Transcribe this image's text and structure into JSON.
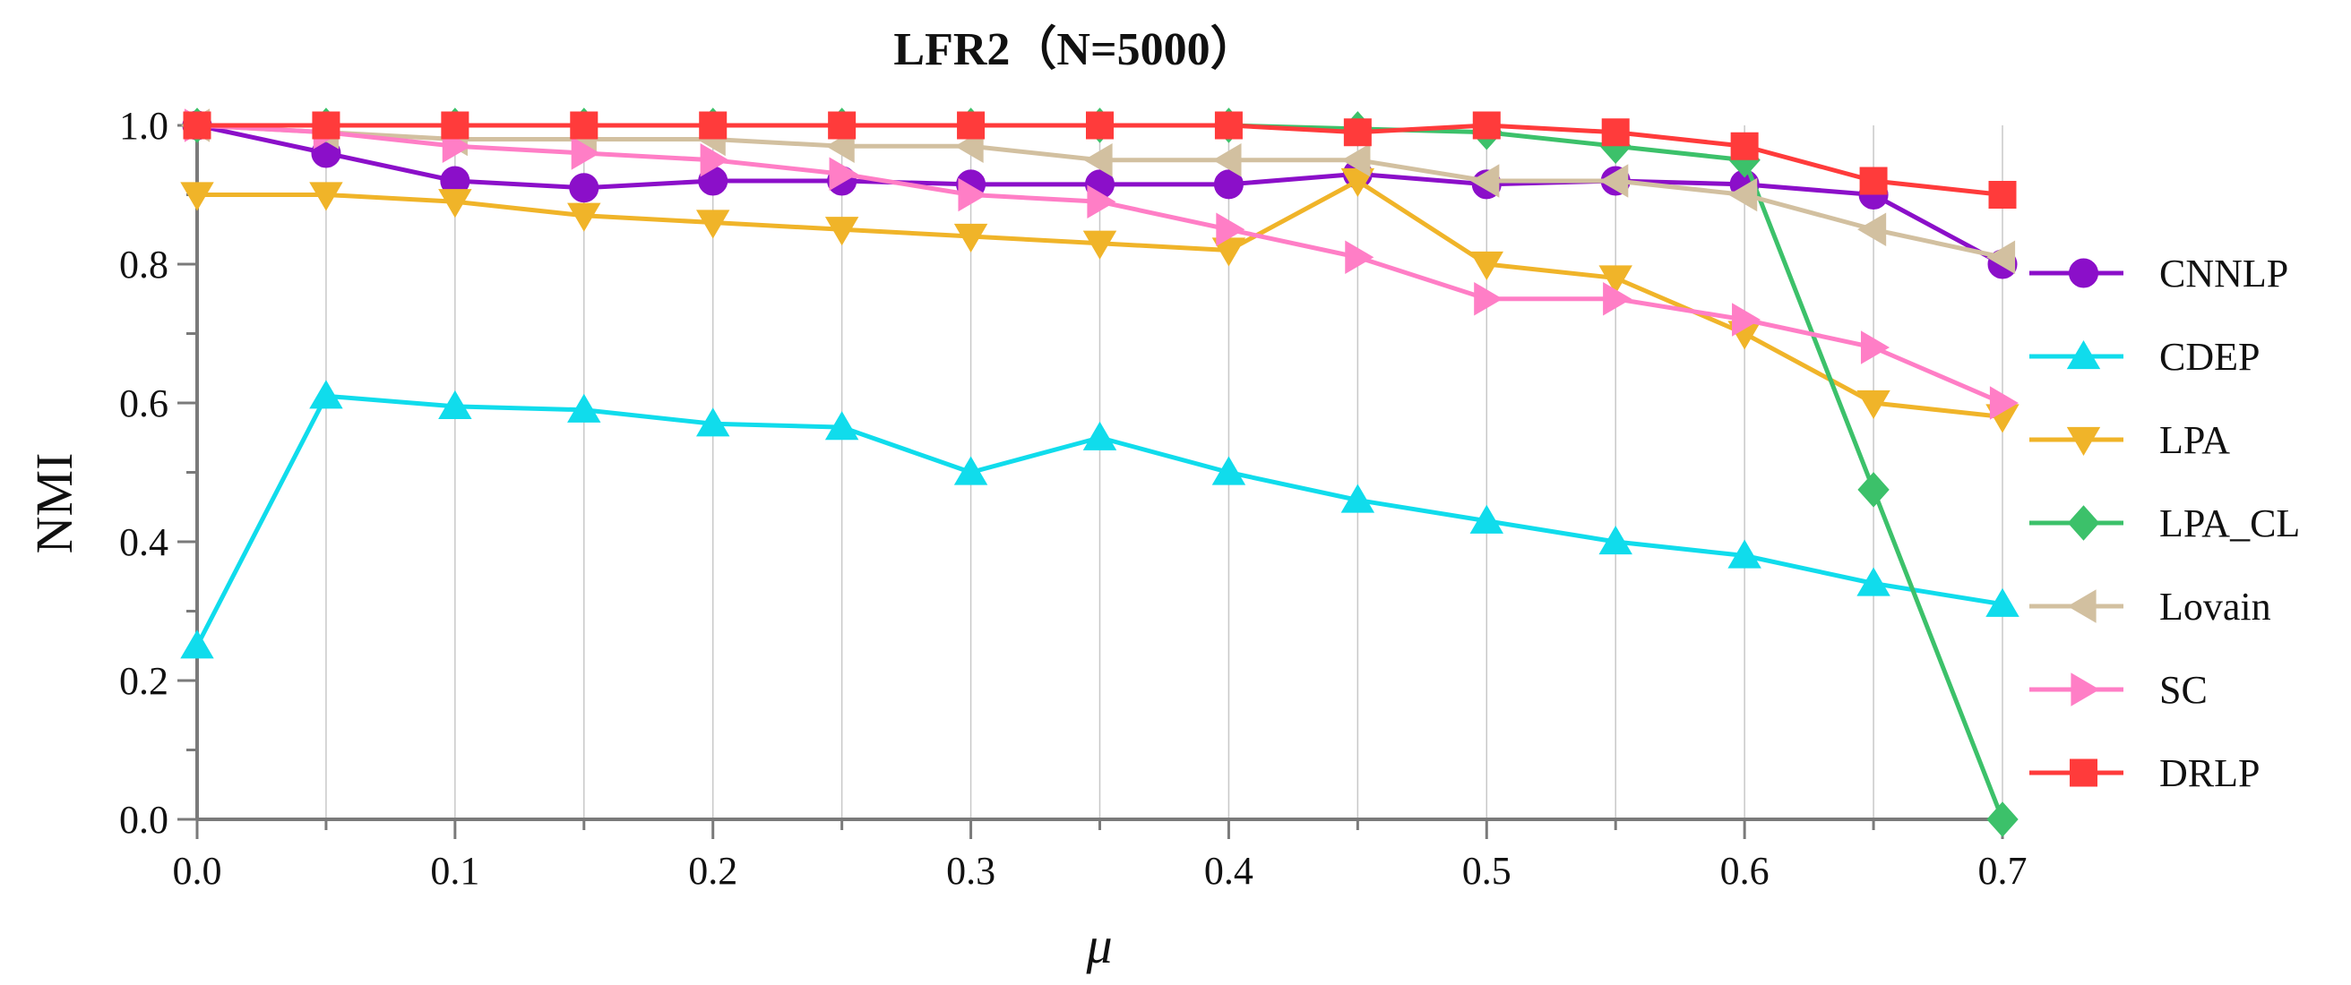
{
  "chart_data": {
    "type": "line",
    "title": "LFR2（N=5000）",
    "xlabel": "μ",
    "ylabel": "NMI",
    "xlim": [
      0,
      0.7
    ],
    "ylim": [
      0,
      1.0
    ],
    "x_ticks": [
      "0.0",
      "0.1",
      "0.2",
      "0.3",
      "0.4",
      "0.5",
      "0.6",
      "0.7"
    ],
    "y_ticks": [
      "0.0",
      "0.2",
      "0.4",
      "0.6",
      "0.8",
      "1.0"
    ],
    "grid": "vertical",
    "legend_position": "right",
    "x": [
      0,
      0.05,
      0.1,
      0.15,
      0.2,
      0.25,
      0.3,
      0.35,
      0.4,
      0.45,
      0.5,
      0.55,
      0.6,
      0.65,
      0.7
    ],
    "series": [
      {
        "name": "CNNLP",
        "color": "#8B0FC9",
        "marker": "circle",
        "values": [
          1.0,
          0.96,
          0.92,
          0.91,
          0.92,
          0.92,
          0.915,
          0.915,
          0.915,
          0.93,
          0.915,
          0.92,
          0.915,
          0.9,
          0.8
        ]
      },
      {
        "name": "CDEP",
        "color": "#10DCEC",
        "marker": "triangle-up",
        "values": [
          0.25,
          0.61,
          0.595,
          0.59,
          0.57,
          0.565,
          0.5,
          0.55,
          0.5,
          0.46,
          0.43,
          0.4,
          0.38,
          0.34,
          0.31
        ]
      },
      {
        "name": "LPA",
        "color": "#F0B429",
        "marker": "triangle-down",
        "values": [
          0.9,
          0.9,
          0.89,
          0.87,
          0.86,
          0.85,
          0.84,
          0.83,
          0.82,
          0.92,
          0.8,
          0.78,
          0.7,
          0.6,
          0.58
        ]
      },
      {
        "name": "LPA_CL",
        "color": "#3CC16A",
        "marker": "diamond",
        "values": [
          1.0,
          1.0,
          1.0,
          1.0,
          1.0,
          1.0,
          1.0,
          1.0,
          1.0,
          0.995,
          0.99,
          0.97,
          0.95,
          0.475,
          0.0
        ]
      },
      {
        "name": "Lovain",
        "color": "#D2C0A0",
        "marker": "triangle-left",
        "values": [
          1.0,
          0.99,
          0.98,
          0.98,
          0.98,
          0.97,
          0.97,
          0.95,
          0.95,
          0.95,
          0.92,
          0.92,
          0.9,
          0.85,
          0.81
        ]
      },
      {
        "name": "SC",
        "color": "#FF7EC6",
        "marker": "triangle-right",
        "values": [
          1.0,
          0.99,
          0.97,
          0.96,
          0.95,
          0.93,
          0.9,
          0.89,
          0.85,
          0.81,
          0.75,
          0.75,
          0.72,
          0.68,
          0.6
        ]
      },
      {
        "name": "DRLP",
        "color": "#FF3B3B",
        "marker": "square",
        "values": [
          1.0,
          1.0,
          1.0,
          1.0,
          1.0,
          1.0,
          1.0,
          1.0,
          1.0,
          0.99,
          1.0,
          0.99,
          0.97,
          0.92,
          0.9
        ]
      }
    ]
  }
}
